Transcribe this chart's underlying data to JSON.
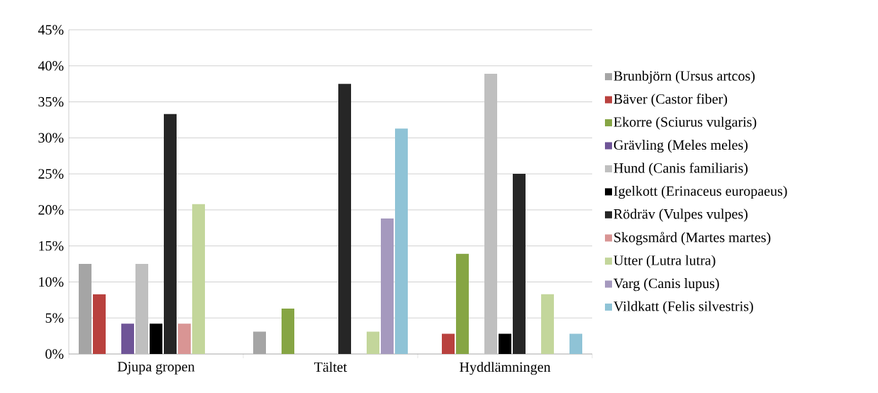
{
  "chart_data": {
    "type": "bar",
    "categories": [
      "Djupa gropen",
      "Tältet",
      "Hyddlämningen"
    ],
    "series": [
      {
        "name": "Brunbjörn (Ursus artcos)",
        "color": "#a5a5a5",
        "values": [
          12.5,
          3.1,
          0
        ]
      },
      {
        "name": "Bäver (Castor fiber)",
        "color": "#b9413e",
        "values": [
          8.3,
          0,
          2.8
        ]
      },
      {
        "name": "Ekorre (Sciurus vulgaris)",
        "color": "#86a544",
        "values": [
          0,
          6.3,
          13.9
        ]
      },
      {
        "name": "Grävling (Meles meles)",
        "color": "#6f5597",
        "values": [
          4.2,
          0,
          0
        ]
      },
      {
        "name": "Hund (Canis familiaris)",
        "color": "#bfbfbf",
        "values": [
          12.5,
          0,
          38.9
        ]
      },
      {
        "name": "Igelkott (Erinaceus europaeus)",
        "color": "#000000",
        "values": [
          4.2,
          0,
          2.8
        ]
      },
      {
        "name": "Rödräv (Vulpes vulpes)",
        "color": "#262626",
        "values": [
          33.3,
          37.5,
          25.0
        ]
      },
      {
        "name": "Skogsmård (Martes martes)",
        "color": "#d99594",
        "values": [
          4.2,
          0,
          0
        ]
      },
      {
        "name": "Utter (Lutra lutra)",
        "color": "#c3d69b",
        "values": [
          20.8,
          3.1,
          8.3
        ]
      },
      {
        "name": "Varg (Canis lupus)",
        "color": "#a599be",
        "values": [
          0,
          18.8,
          0
        ]
      },
      {
        "name": "Vildkatt (Felis silvestris)",
        "color": "#8fc3d6",
        "values": [
          0,
          31.3,
          2.8
        ]
      }
    ],
    "ylim": [
      0,
      45
    ],
    "yticks": [
      {
        "value": 0,
        "label": "0%"
      },
      {
        "value": 5,
        "label": "5%"
      },
      {
        "value": 10,
        "label": "10%"
      },
      {
        "value": 15,
        "label": "15%"
      },
      {
        "value": 20,
        "label": "20%"
      },
      {
        "value": 25,
        "label": "25%"
      },
      {
        "value": 30,
        "label": "30%"
      },
      {
        "value": 35,
        "label": "35%"
      },
      {
        "value": 40,
        "label": "40%"
      },
      {
        "value": 45,
        "label": "45%"
      }
    ],
    "grid": "y",
    "legend": "right"
  }
}
